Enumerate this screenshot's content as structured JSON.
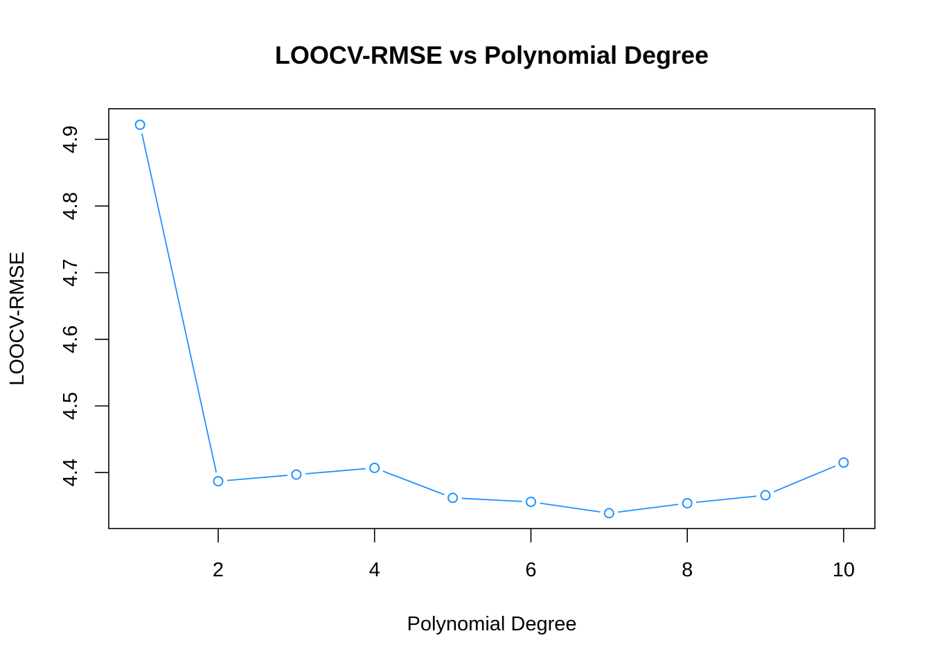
{
  "chart_data": {
    "type": "line",
    "title": "LOOCV-RMSE vs Polynomial Degree",
    "xlabel": "Polynomial Degree",
    "ylabel": "LOOCV-RMSE",
    "x": [
      1,
      2,
      3,
      4,
      5,
      6,
      7,
      8,
      9,
      10
    ],
    "series": [
      {
        "values": [
          4.922,
          4.387,
          4.397,
          4.407,
          4.362,
          4.356,
          4.339,
          4.354,
          4.366,
          4.415
        ],
        "color": "#1E90FF"
      }
    ],
    "xlim": [
      0.6,
      10.4
    ],
    "ylim": [
      4.316,
      4.946
    ],
    "xticks": [
      2,
      4,
      6,
      8,
      10
    ],
    "xtick_labels": [
      "2",
      "4",
      "6",
      "8",
      "10"
    ],
    "yticks": [
      4.4,
      4.5,
      4.6,
      4.7,
      4.8,
      4.9
    ],
    "ytick_labels": [
      "4.4",
      "4.5",
      "4.6",
      "4.7",
      "4.8",
      "4.9"
    ],
    "grid": false,
    "marker": "open-circle",
    "line_style": "overplotted"
  }
}
